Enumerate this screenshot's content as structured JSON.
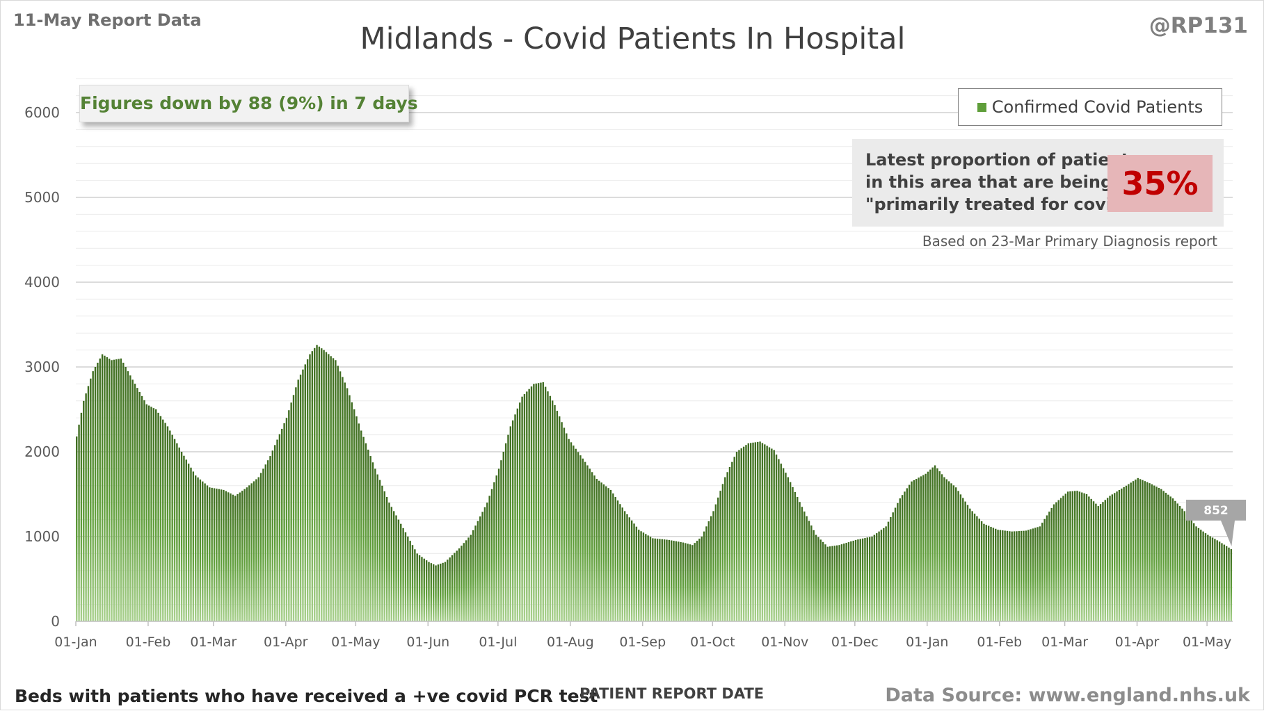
{
  "header": {
    "report_date": "11-May Report Data",
    "handle": "@RP131"
  },
  "summary": {
    "text": "Figures down by 88 (9%) in 7 days"
  },
  "primary_diagnosis": {
    "lines": [
      "Latest proportion of patients",
      "in this area that are being",
      "\"primarily treated for covid\"."
    ],
    "percent": "35%",
    "note": "Based on 23-Mar Primary Diagnosis report"
  },
  "footer": {
    "left": "Beds with patients who have received a +ve covid PCR test",
    "center": "PATIENT REPORT DATE",
    "right": "Data Source: www.england.nhs.uk"
  },
  "colors": {
    "bar": "#5f9e3a",
    "bar_dark": "#3e6b20",
    "summary_text": "#548235",
    "percent_text": "#c00000",
    "percent_bg": "#e6b6b8",
    "callout_bg": "#a6a6a6"
  },
  "chart_data": {
    "type": "bar",
    "title": "Midlands - Covid Patients In Hospital",
    "xlabel": "PATIENT REPORT DATE",
    "ylabel": "",
    "ylim": [
      0,
      6500
    ],
    "yticks": [
      0,
      1000,
      2000,
      3000,
      4000,
      5000,
      6000
    ],
    "grid": true,
    "legend": "top-right",
    "x_start": "2021-01-01",
    "x_end": "2022-05-11",
    "x_tick_labels": [
      "01-Jan",
      "01-Feb",
      "01-Mar",
      "01-Apr",
      "01-May",
      "01-Jun",
      "01-Jul",
      "01-Aug",
      "01-Sep",
      "01-Oct",
      "01-Nov",
      "01-Dec",
      "01-Jan",
      "01-Feb",
      "01-Mar",
      "01-Apr",
      "01-May"
    ],
    "x_tick_dates": [
      "2021-01-01",
      "2021-02-01",
      "2021-03-01",
      "2021-04-01",
      "2021-05-01",
      "2021-06-01",
      "2021-07-01",
      "2021-08-01",
      "2021-09-01",
      "2021-10-01",
      "2021-11-01",
      "2021-12-01",
      "2022-01-01",
      "2022-02-01",
      "2022-03-01",
      "2022-04-01",
      "2022-05-01"
    ],
    "series": [
      {
        "name": "Confirmed Covid Patients",
        "frequency": "daily",
        "anchors": [
          [
            "2021-01-01",
            2180
          ],
          [
            "2021-01-04",
            2600
          ],
          [
            "2021-01-08",
            2950
          ],
          [
            "2021-01-12",
            3150
          ],
          [
            "2021-01-16",
            3080
          ],
          [
            "2021-01-20",
            3100
          ],
          [
            "2021-01-25",
            2850
          ],
          [
            "2021-01-31",
            2560
          ],
          [
            "2021-02-04",
            2500
          ],
          [
            "2021-02-09",
            2300
          ],
          [
            "2021-02-15",
            2000
          ],
          [
            "2021-02-21",
            1720
          ],
          [
            "2021-02-27",
            1580
          ],
          [
            "2021-03-05",
            1550
          ],
          [
            "2021-03-10",
            1480
          ],
          [
            "2021-03-15",
            1580
          ],
          [
            "2021-03-20",
            1700
          ],
          [
            "2021-03-25",
            1950
          ],
          [
            "2021-04-01",
            2400
          ],
          [
            "2021-04-06",
            2850
          ],
          [
            "2021-04-11",
            3150
          ],
          [
            "2021-04-14",
            3260
          ],
          [
            "2021-04-17",
            3200
          ],
          [
            "2021-04-22",
            3080
          ],
          [
            "2021-04-27",
            2750
          ],
          [
            "2021-05-03",
            2250
          ],
          [
            "2021-05-09",
            1800
          ],
          [
            "2021-05-15",
            1400
          ],
          [
            "2021-05-21",
            1100
          ],
          [
            "2021-05-27",
            800
          ],
          [
            "2021-06-01",
            700
          ],
          [
            "2021-06-04",
            660
          ],
          [
            "2021-06-08",
            700
          ],
          [
            "2021-06-14",
            860
          ],
          [
            "2021-06-19",
            1020
          ],
          [
            "2021-06-26",
            1400
          ],
          [
            "2021-07-01",
            1800
          ],
          [
            "2021-07-06",
            2300
          ],
          [
            "2021-07-11",
            2650
          ],
          [
            "2021-07-16",
            2800
          ],
          [
            "2021-07-20",
            2820
          ],
          [
            "2021-07-25",
            2550
          ],
          [
            "2021-07-31",
            2150
          ],
          [
            "2021-08-06",
            1920
          ],
          [
            "2021-08-12",
            1680
          ],
          [
            "2021-08-18",
            1550
          ],
          [
            "2021-08-24",
            1300
          ],
          [
            "2021-08-30",
            1080
          ],
          [
            "2021-09-05",
            980
          ],
          [
            "2021-09-12",
            960
          ],
          [
            "2021-09-18",
            930
          ],
          [
            "2021-09-22",
            900
          ],
          [
            "2021-09-26",
            1000
          ],
          [
            "2021-10-01",
            1300
          ],
          [
            "2021-10-06",
            1700
          ],
          [
            "2021-10-11",
            2000
          ],
          [
            "2021-10-16",
            2100
          ],
          [
            "2021-10-21",
            2120
          ],
          [
            "2021-10-27",
            2020
          ],
          [
            "2021-11-02",
            1700
          ],
          [
            "2021-11-08",
            1350
          ],
          [
            "2021-11-14",
            1020
          ],
          [
            "2021-11-19",
            880
          ],
          [
            "2021-11-24",
            900
          ],
          [
            "2021-12-01",
            960
          ],
          [
            "2021-12-08",
            1000
          ],
          [
            "2021-12-14",
            1120
          ],
          [
            "2021-12-20",
            1450
          ],
          [
            "2021-12-25",
            1650
          ],
          [
            "2021-12-31",
            1740
          ],
          [
            "2022-01-04",
            1840
          ],
          [
            "2022-01-08",
            1700
          ],
          [
            "2022-01-13",
            1580
          ],
          [
            "2022-01-19",
            1330
          ],
          [
            "2022-01-25",
            1150
          ],
          [
            "2022-01-31",
            1080
          ],
          [
            "2022-02-06",
            1060
          ],
          [
            "2022-02-12",
            1070
          ],
          [
            "2022-02-18",
            1120
          ],
          [
            "2022-02-24",
            1380
          ],
          [
            "2022-03-02",
            1530
          ],
          [
            "2022-03-06",
            1540
          ],
          [
            "2022-03-10",
            1500
          ],
          [
            "2022-03-15",
            1360
          ],
          [
            "2022-03-20",
            1480
          ],
          [
            "2022-03-27",
            1600
          ],
          [
            "2022-04-01",
            1690
          ],
          [
            "2022-04-06",
            1630
          ],
          [
            "2022-04-11",
            1560
          ],
          [
            "2022-04-16",
            1450
          ],
          [
            "2022-04-21",
            1300
          ],
          [
            "2022-04-26",
            1120
          ],
          [
            "2022-05-01",
            1020
          ],
          [
            "2022-05-06",
            940
          ],
          [
            "2022-05-11",
            852
          ]
        ]
      }
    ],
    "annotations": [
      {
        "date": "2022-05-11",
        "value": 852,
        "label": "852"
      }
    ]
  }
}
